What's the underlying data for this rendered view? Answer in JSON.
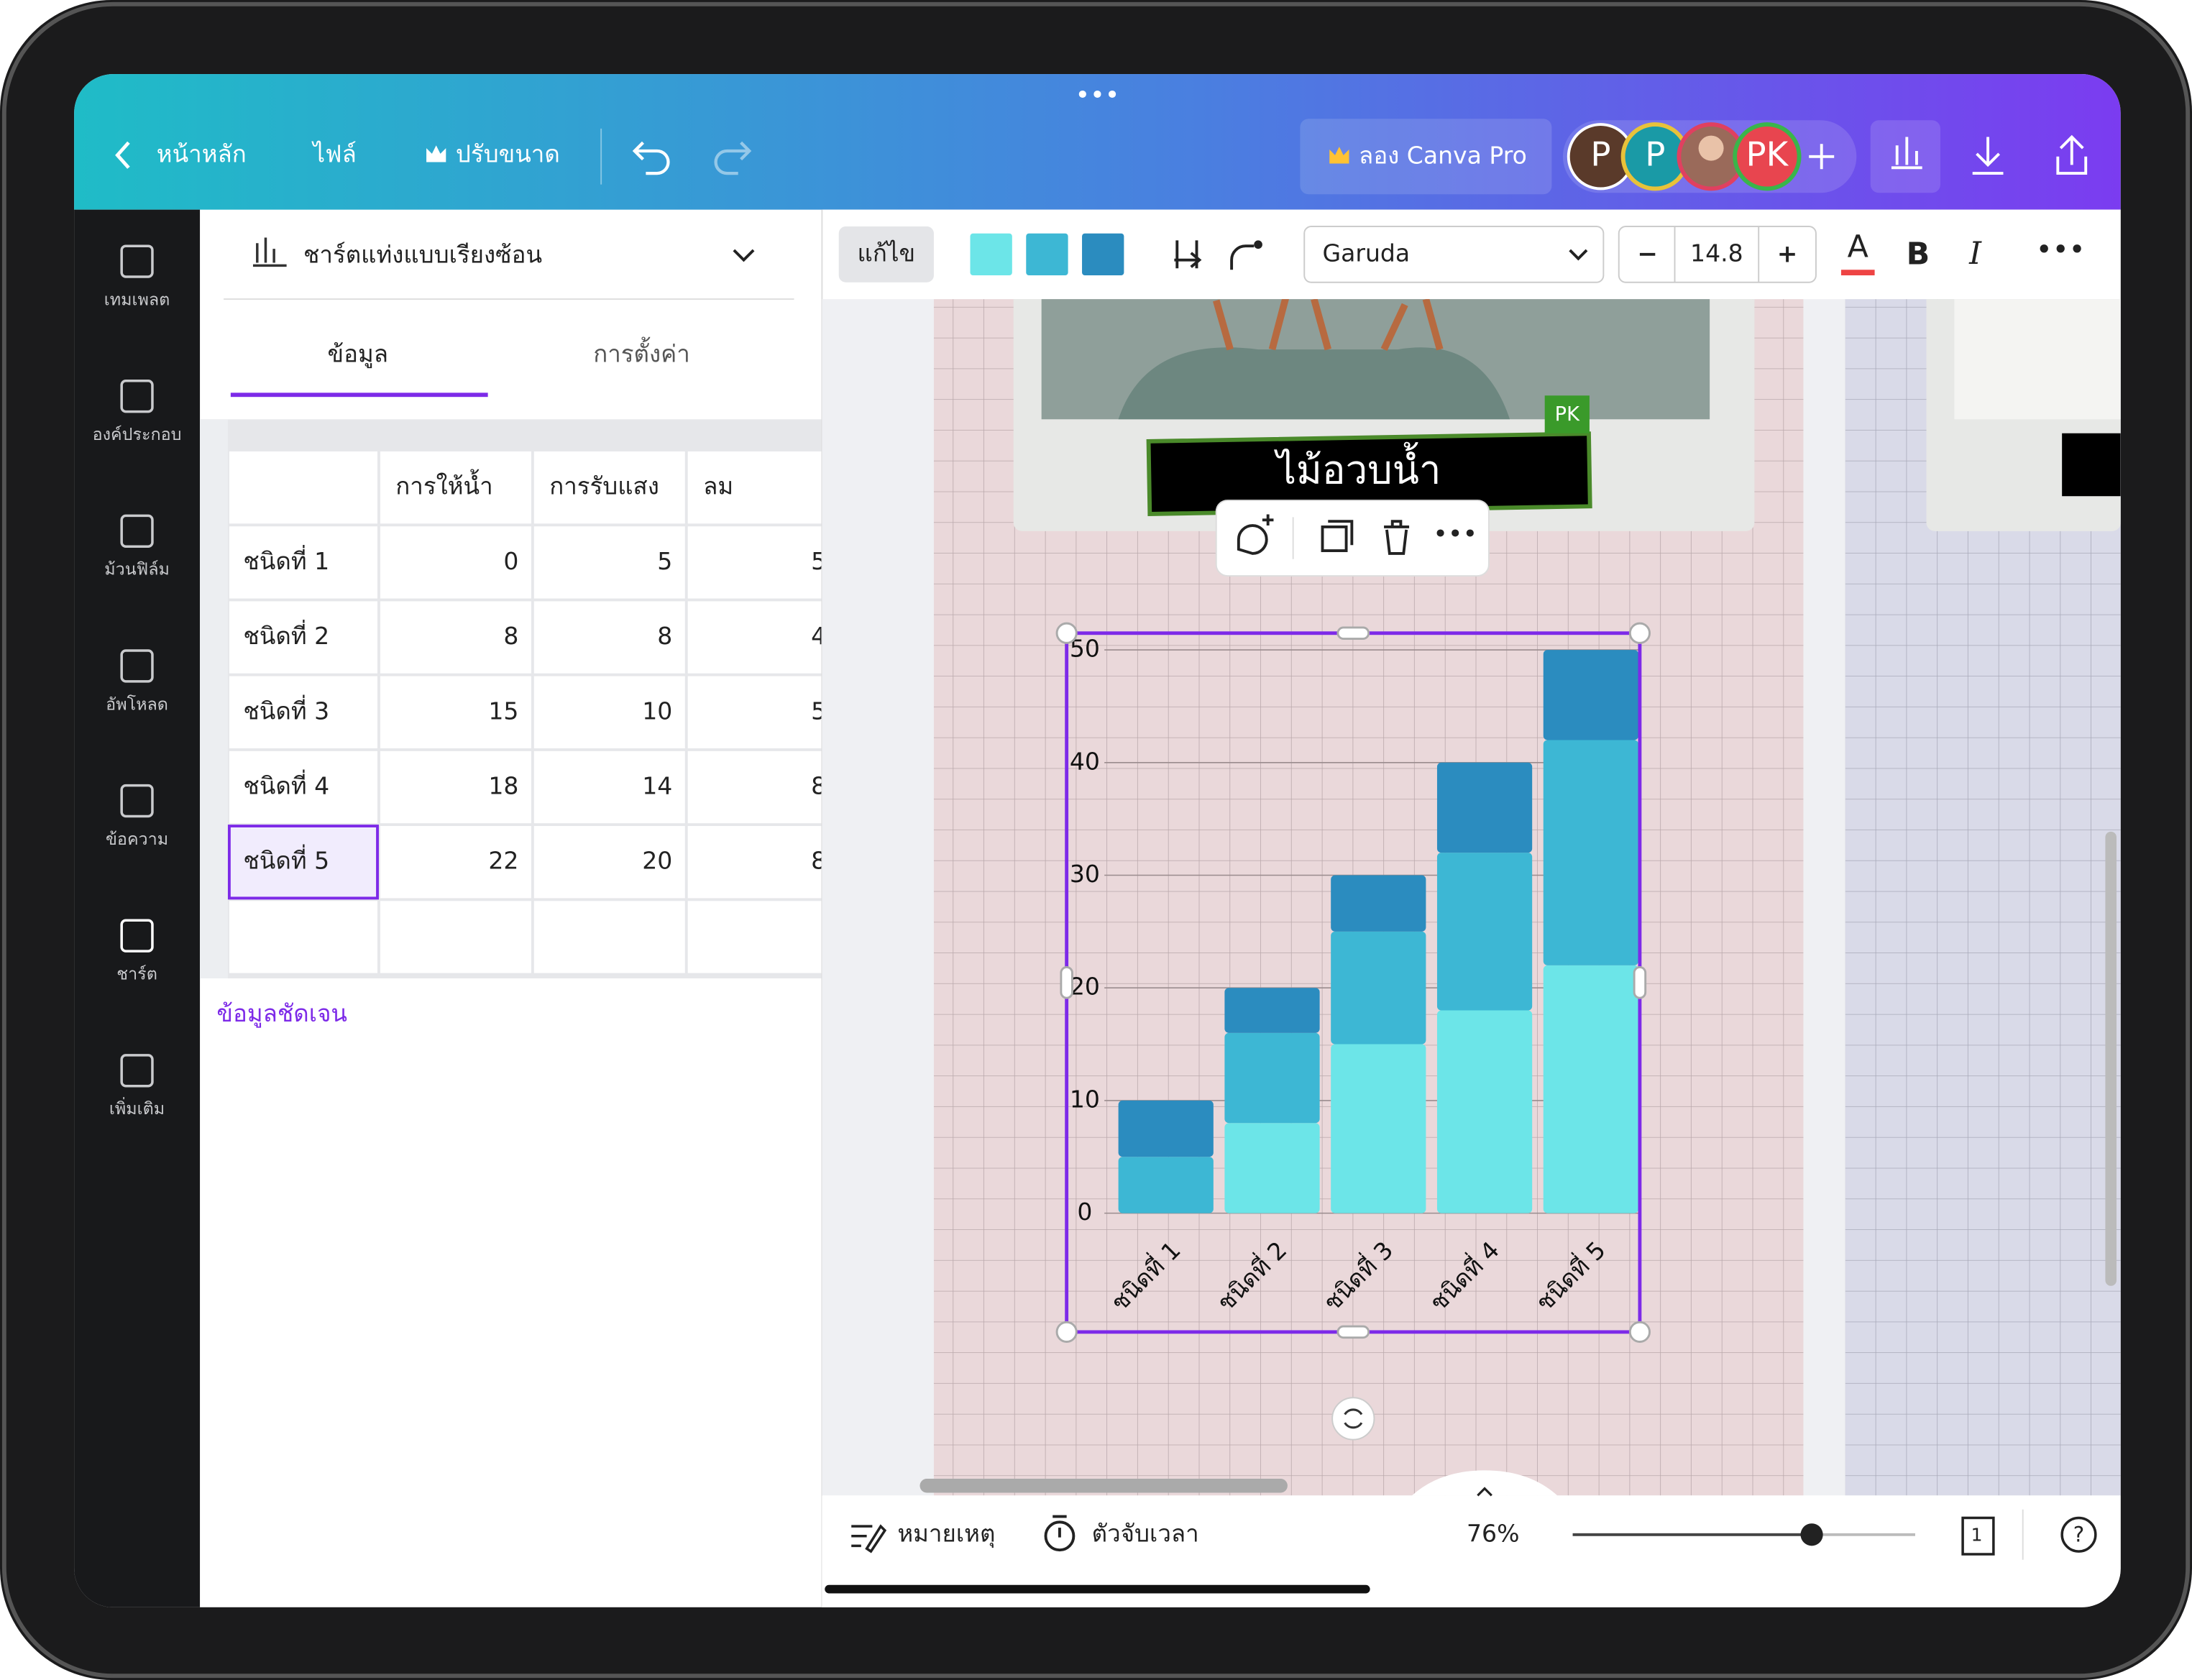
{
  "ui": {
    "top": {
      "home": "หน้าหลัก",
      "file": "ไฟล์",
      "resize": "ปรับขนาด",
      "pro": "ลอง Canva Pro",
      "avatars": [
        "P",
        "P",
        "PK"
      ]
    },
    "sidebar": [
      "เทมเพลต",
      "องค์ประกอบ",
      "ม้วนฟิล์ม",
      "อัพโหลด",
      "ข้อความ",
      "ชาร์ต",
      "เพิ่มเติม"
    ],
    "panel": {
      "chart_name": "ชาร์ตแท่งแบบเรียงซ้อน",
      "tab_data": "ข้อมูล",
      "tab_settings": "การตั้งค่า",
      "clear": "ข้อมูลชัดเจน"
    },
    "toolbar": {
      "edit": "แก้ไข",
      "font": "Garuda",
      "size": "14.8",
      "bold": "B",
      "italic": "I",
      "color": "A"
    },
    "canvas": {
      "title": "ไม้อวบน้ำ",
      "tag": "PK"
    },
    "bottom": {
      "notes": "หมายเหตุ",
      "timer": "ตัวจับเวลา",
      "zoom": "76%",
      "page": "1"
    }
  },
  "chart_data": {
    "type": "bar",
    "stacked": true,
    "grid": true,
    "categories": [
      "ชนิดที่ 1",
      "ชนิดที่ 2",
      "ชนิดที่ 3",
      "ชนิดที่ 4",
      "ชนิดที่ 5"
    ],
    "series": [
      {
        "name": "การให้น้ำ",
        "color": "#6ce5e8",
        "values": [
          0,
          8,
          15,
          18,
          22
        ]
      },
      {
        "name": "การรับแสง",
        "color": "#3db7d4",
        "values": [
          5,
          8,
          10,
          14,
          20
        ]
      },
      {
        "name": "ลม",
        "color": "#2b8cbf",
        "values": [
          5,
          4,
          5,
          8,
          8
        ]
      }
    ],
    "ylim": [
      0,
      50
    ],
    "yticks": [
      0,
      10,
      20,
      30,
      40,
      50
    ]
  }
}
